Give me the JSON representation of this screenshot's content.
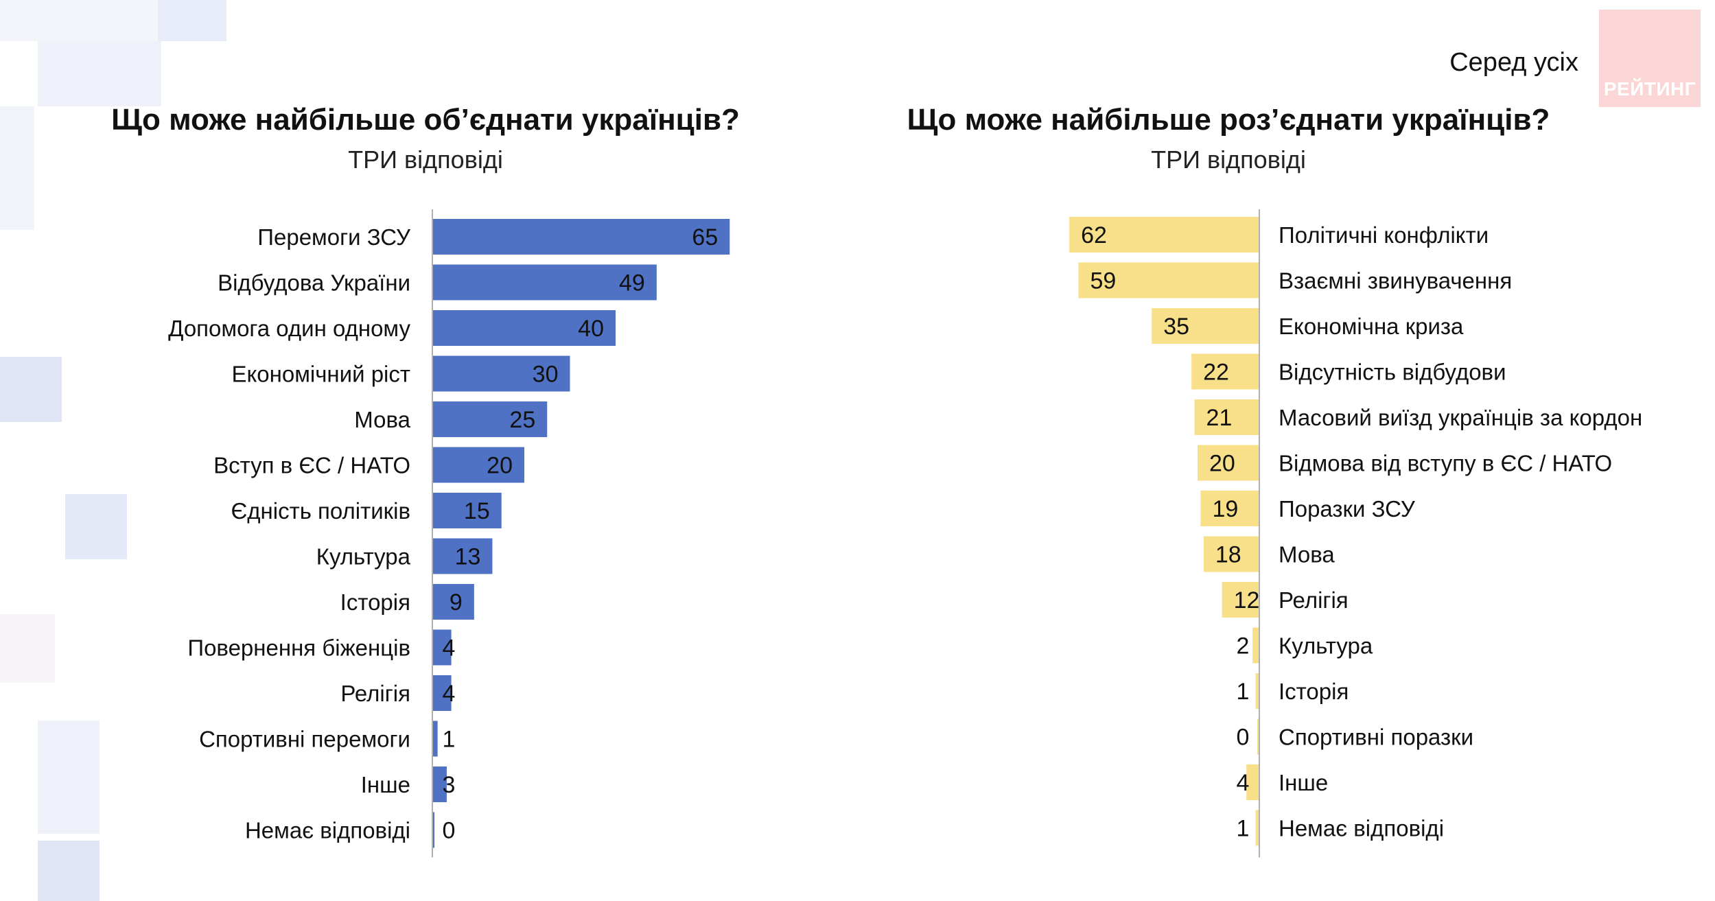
{
  "subset_label": "Серед усіх",
  "logo": {
    "text": "РЕЙТИНГ",
    "color": "#f8c6c6"
  },
  "colors": {
    "left_bar": "#4f72c4",
    "right_bar": "#f8e08a",
    "axis": "#b0b0b0"
  },
  "chart_data": [
    {
      "type": "bar",
      "orientation": "horizontal",
      "title": "Що може найбільше об’єднати українців?",
      "subtitle": "ТРИ відповіді",
      "categories": [
        "Перемоги ЗСУ",
        "Відбудова України",
        "Допомога один одному",
        "Економічний ріст",
        "Мова",
        "Вступ в ЄС / НАТО",
        "Єдність політиків",
        "Культура",
        "Історія",
        "Повернення біженців",
        "Релігія",
        "Спортивні перемоги",
        "Інше",
        "Немає відповіді"
      ],
      "values": [
        65,
        49,
        40,
        30,
        25,
        20,
        15,
        13,
        9,
        4,
        4,
        1,
        3,
        0
      ],
      "xlim": [
        0,
        100
      ],
      "grid": false,
      "legend": "none"
    },
    {
      "type": "bar",
      "orientation": "horizontal",
      "direction": "right-to-left",
      "title": "Що може найбільше роз’єднати українців?",
      "subtitle": "ТРИ відповіді",
      "categories": [
        "Політичні конфлікти",
        "Взаємні звинувачення",
        "Економічна криза",
        "Відсутність відбудови",
        "Масовий виїзд українців за кордон",
        "Відмова від вступу в ЄС / НАТО",
        "Поразки ЗСУ",
        "Мова",
        "Релігія",
        "Культура",
        "Історія",
        "Спортивні поразки",
        "Інше",
        "Немає відповіді"
      ],
      "values": [
        62,
        59,
        35,
        22,
        21,
        20,
        19,
        18,
        12,
        2,
        1,
        0,
        4,
        1
      ],
      "xlim": [
        0,
        100
      ],
      "grid": false,
      "legend": "none"
    }
  ]
}
